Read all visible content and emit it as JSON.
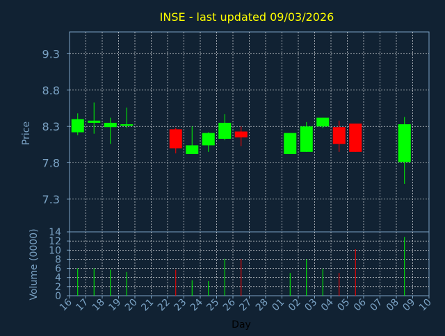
{
  "chart_data": {
    "type": "candlestick",
    "title": "INSE - last updated 09/03/2026",
    "colors": {
      "background": "#112233",
      "grid": "#ffffff",
      "axis": "#7aa2c4",
      "title": "#ffff00",
      "up": "#00ff00",
      "down": "#ff0000"
    },
    "xlabel": "Day",
    "x_tick_labels": [
      "16",
      "17",
      "18",
      "19",
      "20",
      "21",
      "22",
      "23",
      "24",
      "25",
      "26",
      "27",
      "28",
      "01",
      "02",
      "03",
      "04",
      "05",
      "06",
      "07",
      "08",
      "09",
      "10"
    ],
    "price_panel": {
      "ylabel": "Price",
      "ylim": [
        6.85,
        9.6
      ],
      "yticks": [
        7.3,
        7.8,
        8.3,
        8.8,
        9.3
      ],
      "ytick_labels": [
        "7.3",
        "7.8",
        "8.3",
        "8.8",
        "9.3"
      ]
    },
    "volume_panel": {
      "ylabel": "Volume (0000)",
      "ylim": [
        0,
        14
      ],
      "yticks": [
        0,
        2,
        4,
        6,
        8,
        10,
        12,
        14
      ],
      "ytick_labels": [
        "0",
        "2",
        "4",
        "6",
        "8",
        "10",
        "12",
        "14"
      ]
    },
    "candles": [
      {
        "day": "17",
        "open": 8.22,
        "close": 8.4,
        "high": 8.48,
        "low": 8.18,
        "volume": 6.0
      },
      {
        "day": "18",
        "open": 8.35,
        "close": 8.38,
        "high": 8.63,
        "low": 8.2,
        "volume": 6.0
      },
      {
        "day": "19",
        "open": 8.29,
        "close": 8.35,
        "high": 8.42,
        "low": 8.06,
        "volume": 5.7
      },
      {
        "day": "20",
        "open": 8.31,
        "close": 8.33,
        "high": 8.56,
        "low": 8.28,
        "volume": 5.2
      },
      {
        "day": "23",
        "open": 8.26,
        "close": 8.0,
        "high": 8.28,
        "low": 7.93,
        "volume": 5.7
      },
      {
        "day": "24",
        "open": 7.92,
        "close": 8.04,
        "high": 8.3,
        "low": 7.92,
        "volume": 3.4
      },
      {
        "day": "25",
        "open": 8.04,
        "close": 8.21,
        "high": 8.22,
        "low": 7.95,
        "volume": 3.2
      },
      {
        "day": "26",
        "open": 8.13,
        "close": 8.35,
        "high": 8.47,
        "low": 8.11,
        "volume": 8.1
      },
      {
        "day": "27",
        "open": 8.23,
        "close": 8.15,
        "high": 8.3,
        "low": 8.03,
        "volume": 8.0
      },
      {
        "day": "02",
        "open": 7.92,
        "close": 8.21,
        "high": 8.21,
        "low": 7.92,
        "volume": 5.0
      },
      {
        "day": "03",
        "open": 7.95,
        "close": 8.3,
        "high": 8.36,
        "low": 7.95,
        "volume": 8.0
      },
      {
        "day": "04",
        "open": 8.3,
        "close": 8.42,
        "high": 8.42,
        "low": 8.28,
        "volume": 5.9
      },
      {
        "day": "05",
        "open": 8.29,
        "close": 8.06,
        "high": 8.38,
        "low": 7.95,
        "volume": 5.0
      },
      {
        "day": "06",
        "open": 8.34,
        "close": 7.95,
        "high": 8.34,
        "low": 7.95,
        "volume": 10.2
      },
      {
        "day": "09",
        "open": 7.81,
        "close": 8.33,
        "high": 8.43,
        "low": 7.51,
        "volume": 12.9
      }
    ]
  }
}
